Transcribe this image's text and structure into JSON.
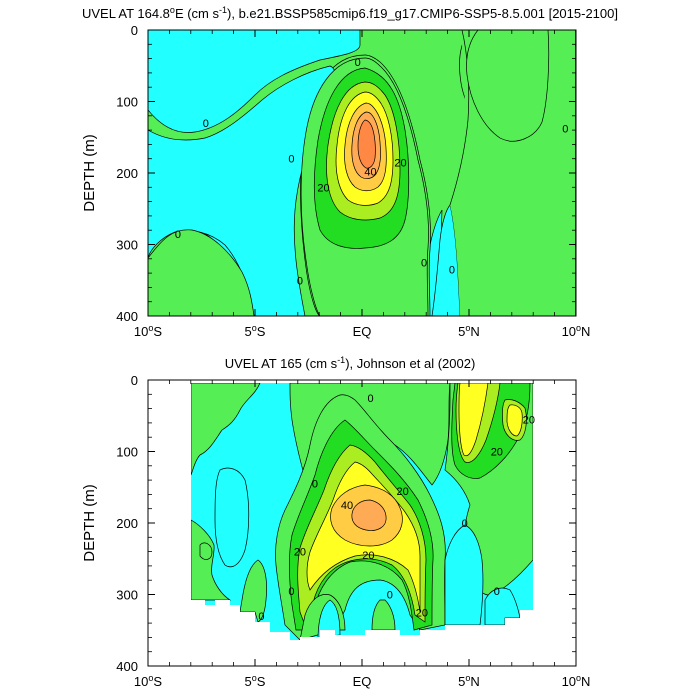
{
  "colors": {
    "lt_neg": "#22ffff",
    "c0_10": "#55ee55",
    "c10_20": "#22dd22",
    "c20_30": "#aaee22",
    "c30_40": "#ffff22",
    "c40_50": "#ffcc44",
    "c50_60": "#ffaa55",
    "gt60": "#ff8844"
  },
  "chart_data": [
    {
      "type": "contour",
      "title_main": "UVEL AT 164.8",
      "title_deg": "o",
      "title_mid": "E (cm s",
      "title_sup": "-1",
      "title_end": "), b.e21.BSSP585cmip6.f19_g17.CMIP6-SSP5-8.5.001 [2015-2100]",
      "ylabel": "DEPTH (m)",
      "xlim": [
        -10,
        10
      ],
      "ylim": [
        0,
        400
      ],
      "y_inverted": true,
      "xticks": [
        -10,
        -5,
        0,
        5,
        10
      ],
      "xtick_labels": [
        [
          "10",
          "o",
          "S"
        ],
        [
          "5",
          "o",
          "S"
        ],
        [
          "EQ",
          "",
          ""
        ],
        [
          "5",
          "o",
          "N"
        ],
        [
          "10",
          "o",
          "N"
        ]
      ],
      "yticks": [
        0,
        100,
        200,
        300,
        400
      ],
      "contour_labels": [
        {
          "text": "0",
          "lon": -7.3,
          "lat_depth": 130
        },
        {
          "text": "0",
          "lon": -3.3,
          "lat_depth": 180
        },
        {
          "text": "0",
          "lon": -0.2,
          "lat_depth": 45
        },
        {
          "text": "0",
          "lon": 9.5,
          "lat_depth": 138
        },
        {
          "text": "0",
          "lon": -8.6,
          "lat_depth": 285
        },
        {
          "text": "0",
          "lon": -2.9,
          "lat_depth": 350
        },
        {
          "text": "0",
          "lon": 2.9,
          "lat_depth": 325
        },
        {
          "text": "0",
          "lon": 4.2,
          "lat_depth": 335
        },
        {
          "text": "20",
          "lon": 1.8,
          "lat_depth": 185
        },
        {
          "text": "20",
          "lon": -1.8,
          "lat_depth": 220
        },
        {
          "text": "40",
          "lon": 0.4,
          "lat_depth": 198
        }
      ]
    },
    {
      "type": "contour",
      "title_main": "UVEL AT 165 (cm s",
      "title_sup": "-1",
      "title_end": "), Johnson et al (2002)",
      "ylabel": "DEPTH (m)",
      "xlim": [
        -10,
        10
      ],
      "ylim": [
        0,
        400
      ],
      "y_inverted": true,
      "xticks": [
        -10,
        -5,
        0,
        5,
        10
      ],
      "xtick_labels": [
        [
          "10",
          "o",
          "S"
        ],
        [
          "5",
          "o",
          "S"
        ],
        [
          "EQ",
          "",
          ""
        ],
        [
          "5",
          "o",
          "N"
        ],
        [
          "10",
          "o",
          "N"
        ]
      ],
      "yticks": [
        0,
        100,
        200,
        300,
        400
      ],
      "contour_labels": [
        {
          "text": "0",
          "lon": 0.4,
          "lat_depth": 25
        },
        {
          "text": "0",
          "lon": -2.2,
          "lat_depth": 145
        },
        {
          "text": "0",
          "lon": 4.8,
          "lat_depth": 200
        },
        {
          "text": "0",
          "lon": -4.7,
          "lat_depth": 330
        },
        {
          "text": "0",
          "lon": -3.3,
          "lat_depth": 295
        },
        {
          "text": "0",
          "lon": 1.3,
          "lat_depth": 300
        },
        {
          "text": "0",
          "lon": 6.3,
          "lat_depth": 295
        },
        {
          "text": "20",
          "lon": 6.3,
          "lat_depth": 100
        },
        {
          "text": "20",
          "lon": 7.8,
          "lat_depth": 55
        },
        {
          "text": "20",
          "lon": 1.9,
          "lat_depth": 155
        },
        {
          "text": "20",
          "lon": -2.9,
          "lat_depth": 240
        },
        {
          "text": "20",
          "lon": 0.3,
          "lat_depth": 245
        },
        {
          "text": "20",
          "lon": 2.8,
          "lat_depth": 325
        },
        {
          "text": "40",
          "lon": -0.7,
          "lat_depth": 175
        }
      ]
    }
  ]
}
